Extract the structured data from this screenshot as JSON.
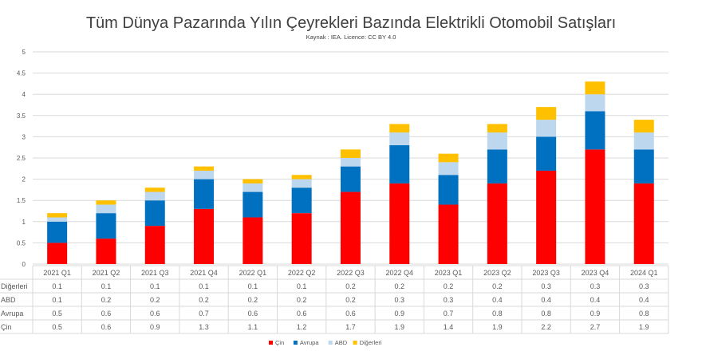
{
  "chart_data": {
    "type": "bar",
    "stacked": true,
    "title": "Tüm Dünya Pazarında Yılın Çeyrekleri Bazında Elektrikli Otomobil Satışları",
    "subtitle": "Kaynak : IEA. Licence: CC BY 4.0",
    "xlabel": "",
    "ylabel": "",
    "ylim": [
      0,
      5
    ],
    "yticks": [
      "0",
      "0.5",
      "1",
      "1.5",
      "2",
      "2.5",
      "3",
      "3.5",
      "4",
      "4.5",
      "5"
    ],
    "grid": true,
    "legend": "bottom",
    "data_table": true,
    "categories": [
      "2021 Q1",
      "2021 Q2",
      "2021 Q3",
      "2021 Q4",
      "2022 Q1",
      "2022 Q2",
      "2022 Q3",
      "2022 Q4",
      "2023 Q1",
      "2023 Q2",
      "2023 Q3",
      "2023 Q4",
      "2024 Q1"
    ],
    "series": [
      {
        "name": "Çin",
        "color": "#ff0000",
        "values": [
          0.5,
          0.6,
          0.9,
          1.3,
          1.1,
          1.2,
          1.7,
          1.9,
          1.4,
          1.9,
          2.2,
          2.7,
          1.9
        ]
      },
      {
        "name": "Avrupa",
        "color": "#0070c0",
        "values": [
          0.5,
          0.6,
          0.6,
          0.7,
          0.6,
          0.6,
          0.6,
          0.9,
          0.7,
          0.8,
          0.8,
          0.9,
          0.8
        ]
      },
      {
        "name": "ABD",
        "color": "#bdd7ee",
        "values": [
          0.1,
          0.2,
          0.2,
          0.2,
          0.2,
          0.2,
          0.2,
          0.3,
          0.3,
          0.4,
          0.4,
          0.4,
          0.4
        ]
      },
      {
        "name": "Diğerleri",
        "color": "#ffc000",
        "values": [
          0.1,
          0.1,
          0.1,
          0.1,
          0.1,
          0.1,
          0.2,
          0.2,
          0.2,
          0.2,
          0.3,
          0.3,
          0.3
        ]
      }
    ]
  }
}
